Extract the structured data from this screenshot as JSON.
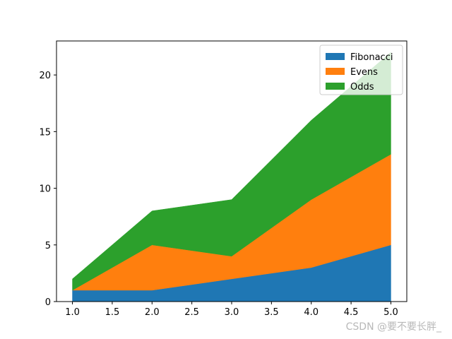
{
  "chart_data": {
    "type": "area",
    "stacked": true,
    "x": [
      1,
      2,
      3,
      4,
      5
    ],
    "series": [
      {
        "name": "Fibonacci",
        "values": [
          1,
          1,
          2,
          3,
          5
        ],
        "color": "#1f77b4"
      },
      {
        "name": "Evens",
        "values": [
          0,
          4,
          2,
          6,
          8
        ],
        "color": "#ff7f0e"
      },
      {
        "name": "Odds",
        "values": [
          1,
          3,
          5,
          7,
          9
        ],
        "color": "#2ca02c"
      }
    ],
    "xlim": [
      0.8,
      5.2
    ],
    "ylim": [
      0,
      23
    ],
    "xticks": [
      1.0,
      1.5,
      2.0,
      2.5,
      3.0,
      3.5,
      4.0,
      4.5,
      5.0
    ],
    "xtick_labels": [
      "1.0",
      "1.5",
      "2.0",
      "2.5",
      "3.0",
      "3.5",
      "4.0",
      "4.5",
      "5.0"
    ],
    "yticks": [
      0,
      5,
      10,
      15,
      20
    ],
    "ytick_labels": [
      "0",
      "5",
      "10",
      "15",
      "20"
    ],
    "grid": false,
    "legend_position": "top-right"
  },
  "watermark": "CSDN @要不要长胖_"
}
